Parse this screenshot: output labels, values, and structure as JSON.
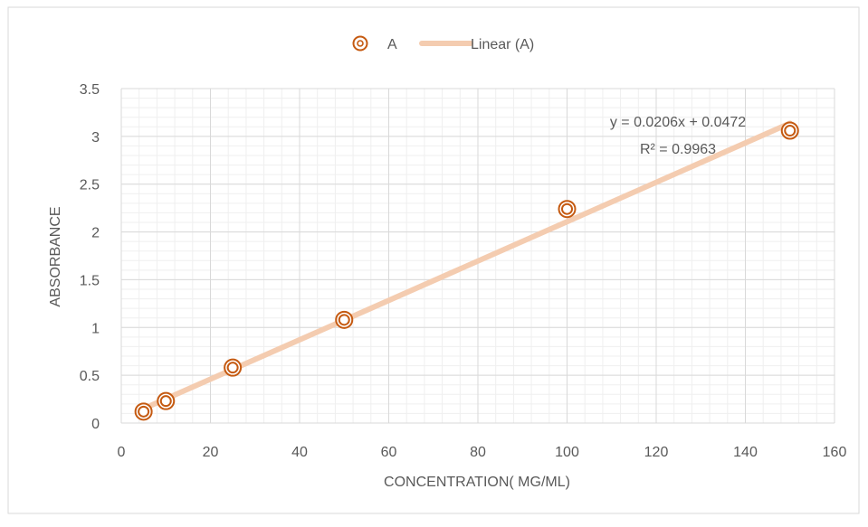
{
  "chart_data": {
    "type": "scatter",
    "title": "",
    "xlabel": "CONCENTRATION( MG/ML)",
    "ylabel": "ABSORBANCE",
    "xlim": [
      0,
      160
    ],
    "ylim": [
      0,
      3.5
    ],
    "x_ticks": [
      0,
      20,
      40,
      60,
      80,
      100,
      120,
      140,
      160
    ],
    "y_ticks": [
      0,
      0.5,
      1,
      1.5,
      2,
      2.5,
      3,
      3.5
    ],
    "x_tick_labels": [
      "0",
      "20",
      "40",
      "60",
      "80",
      "100",
      "120",
      "140",
      "160"
    ],
    "y_tick_labels": [
      "0",
      "0.5",
      "1",
      "1.5",
      "2",
      "2.5",
      "3",
      "3.5"
    ],
    "grid": true,
    "legend_position": "top",
    "series": [
      {
        "name": "A",
        "x": [
          5,
          10,
          25,
          50,
          100,
          150
        ],
        "y": [
          0.12,
          0.23,
          0.58,
          1.08,
          2.24,
          3.06
        ],
        "color": "#C55A11"
      }
    ],
    "trendline": {
      "name": "Linear (A)",
      "slope": 0.0206,
      "intercept": 0.0472,
      "x_range": [
        5,
        150
      ],
      "color": "#F4CCB0",
      "equation": "y = 0.0206x + 0.0472",
      "r_squared": "R² = 0.9963"
    }
  }
}
